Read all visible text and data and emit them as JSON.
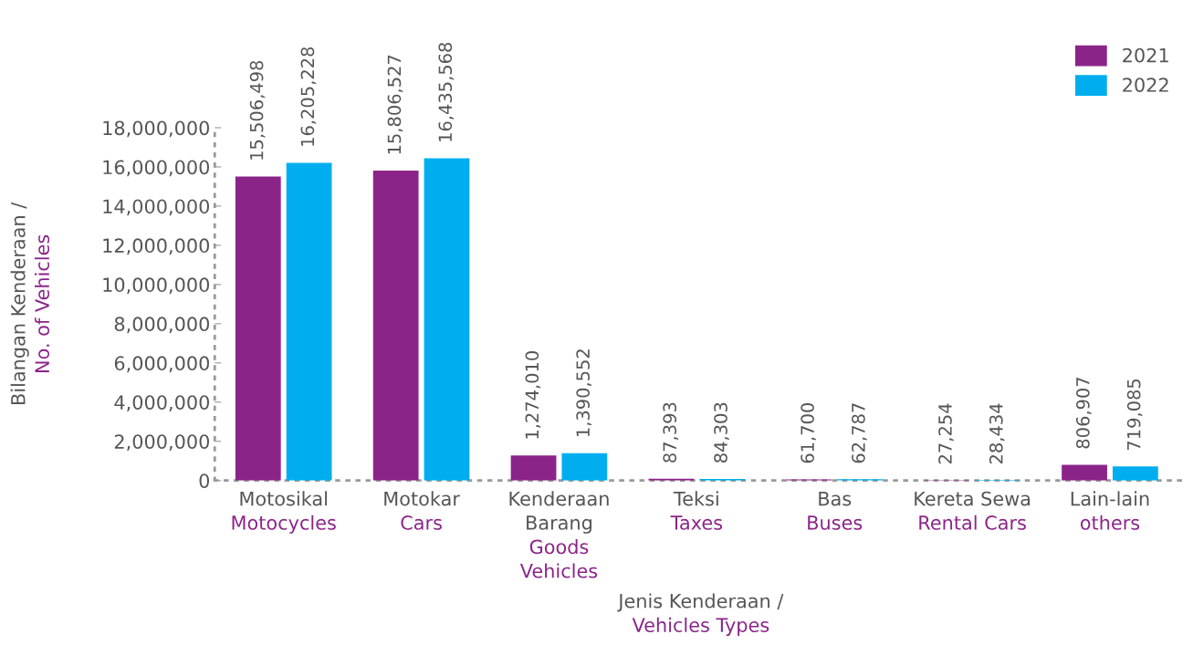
{
  "chart_data": {
    "type": "bar",
    "categories": [
      "Motosikal\nMotocycles",
      "Motokar\nCars",
      "Kenderaan\nBarang\nGoods\nVehicles",
      "Teksi\nTaxes",
      "Bas\nBuses",
      "Kereta Sewa\nRental Cars",
      "Lain-lain\nothers"
    ],
    "series": [
      {
        "name": "2021",
        "color": "#8b2489",
        "values": [
          15506498,
          15806527,
          1274010,
          87393,
          61700,
          27254,
          806907
        ],
        "value_labels": [
          "15,506,498",
          "15,806,527",
          "1,274,010",
          "87,393",
          "61,700",
          "27,254",
          "806,907"
        ]
      },
      {
        "name": "2022",
        "color": "#00aeef",
        "values": [
          16205228,
          16435568,
          1390552,
          84303,
          62787,
          28434,
          719085
        ],
        "value_labels": [
          "16,205,228",
          "16,435,568",
          "1,390,552",
          "84,303",
          "62,787",
          "28,434",
          "719,085"
        ]
      }
    ],
    "xlabel": "Jenis Kenderaan /\nVehicles Types",
    "ylabel": "Bilangan Kenderaan /\nNo. of Vehicles",
    "ylim": [
      0,
      18000000
    ],
    "yticks": [
      0,
      {
        "value": 2000000,
        "label": "2,000,000"
      },
      {
        "value": 4000000,
        "label": "4,000,000"
      },
      {
        "value": 6000000,
        "label": "6,000,000"
      },
      {
        "value": 8000000,
        "label": "8,000,000"
      },
      {
        "value": 10000000,
        "label": "10,000,000"
      },
      {
        "value": 12000000,
        "label": "12,000,000"
      },
      {
        "value": 14000000,
        "label": "14,000,000"
      },
      {
        "value": 16000000,
        "label": "16,000,000"
      },
      {
        "value": 18000000,
        "label": "18,000,000"
      }
    ],
    "grid": false,
    "legend": "top right"
  }
}
